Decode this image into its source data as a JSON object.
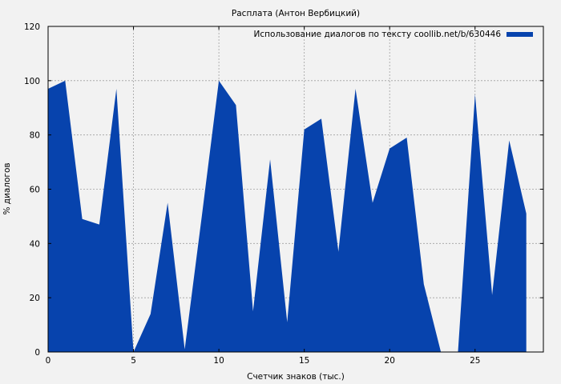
{
  "chart_data": {
    "type": "area",
    "title": "Расплата (Антон Вербицкий)",
    "xlabel": "Счетчик знаков (тыс.)",
    "ylabel": "% диалогов",
    "xlim": [
      0,
      29
    ],
    "ylim": [
      0,
      120
    ],
    "xticks": [
      0,
      5,
      10,
      15,
      20,
      25
    ],
    "yticks": [
      0,
      20,
      40,
      60,
      80,
      100,
      120
    ],
    "grid": true,
    "legend_position": "top-right",
    "series": [
      {
        "name": "Использование диалогов по тексту coollib.net/b/630446",
        "color": "#0743ad",
        "x": [
          0,
          1,
          2,
          3,
          4,
          5,
          6,
          7,
          8,
          9,
          10,
          11,
          12,
          13,
          14,
          15,
          16,
          17,
          18,
          19,
          20,
          21,
          22,
          23,
          24,
          25,
          26,
          27,
          28
        ],
        "values": [
          97,
          100,
          49,
          47,
          97,
          0,
          14,
          55,
          1,
          50,
          100,
          91,
          15,
          71,
          11,
          82,
          86,
          37,
          97,
          55,
          75,
          79,
          25,
          0,
          0,
          95,
          21,
          78,
          51
        ]
      }
    ]
  }
}
